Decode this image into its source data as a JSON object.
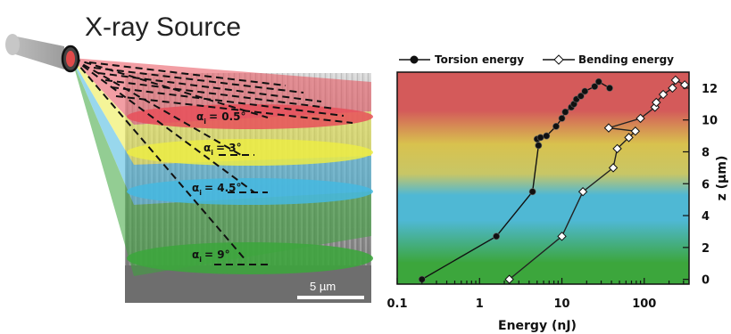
{
  "diagram": {
    "title": "X-ray Source",
    "scale_bar": "5 µm",
    "planes": [
      {
        "label_prefix": "α",
        "sub": "i",
        "angle": "= 0.5°",
        "color": "#e8505a"
      },
      {
        "label_prefix": "α",
        "sub": "i",
        "angle": "= 3°",
        "color": "#ecec45"
      },
      {
        "label_prefix": "α",
        "sub": "i",
        "angle": "= 4.5°",
        "color": "#45b8e0"
      },
      {
        "label_prefix": "α",
        "sub": "i",
        "angle": "= 9°",
        "color": "#3ca63c"
      }
    ]
  },
  "chart_data": {
    "type": "line",
    "xlabel": "Energy (nJ)",
    "ylabel": "z (µm)",
    "x_scale": "log",
    "xlim": [
      0.1,
      350
    ],
    "ylim": [
      -0.3,
      13
    ],
    "x_ticks": [
      "0.1",
      "1",
      "10",
      "100"
    ],
    "x_tick_values": [
      0.1,
      1,
      10,
      100
    ],
    "y_ticks": [
      "0",
      "2",
      "4",
      "6",
      "8",
      "10",
      "12"
    ],
    "y_tick_values": [
      0,
      2,
      4,
      6,
      8,
      10,
      12
    ],
    "legend_position": "top",
    "background_bands": [
      "#3ca63c",
      "#4fb8d4",
      "#d4c85a",
      "#d45a5a"
    ],
    "series": [
      {
        "name": "Torsion energy",
        "marker": "circle-filled",
        "color": "#111111",
        "points": [
          [
            0.2,
            0
          ],
          [
            1.6,
            2.7
          ],
          [
            4.4,
            5.5
          ],
          [
            5.2,
            8.4
          ],
          [
            5.0,
            8.8
          ],
          [
            5.5,
            8.9
          ],
          [
            6.5,
            9.0
          ],
          [
            8.5,
            9.6
          ],
          [
            10.0,
            10.1
          ],
          [
            11.0,
            10.5
          ],
          [
            13.0,
            10.8
          ],
          [
            14.0,
            11.0
          ],
          [
            15.0,
            11.3
          ],
          [
            17.0,
            11.5
          ],
          [
            19.0,
            11.8
          ],
          [
            25.0,
            12.1
          ],
          [
            28.0,
            12.4
          ],
          [
            38.0,
            12.0
          ]
        ]
      },
      {
        "name": "Bending energy",
        "marker": "diamond-open",
        "color": "#ffffff",
        "points": [
          [
            2.3,
            0
          ],
          [
            10.0,
            2.7
          ],
          [
            18.0,
            5.5
          ],
          [
            42.0,
            7.0
          ],
          [
            47.0,
            8.2
          ],
          [
            65.0,
            8.9
          ],
          [
            78.0,
            9.3
          ],
          [
            37.0,
            9.5
          ],
          [
            90.0,
            10.1
          ],
          [
            135.0,
            10.8
          ],
          [
            140.0,
            11.1
          ],
          [
            170.0,
            11.6
          ],
          [
            220.0,
            12.0
          ],
          [
            240.0,
            12.5
          ],
          [
            310.0,
            12.2
          ]
        ]
      }
    ]
  }
}
